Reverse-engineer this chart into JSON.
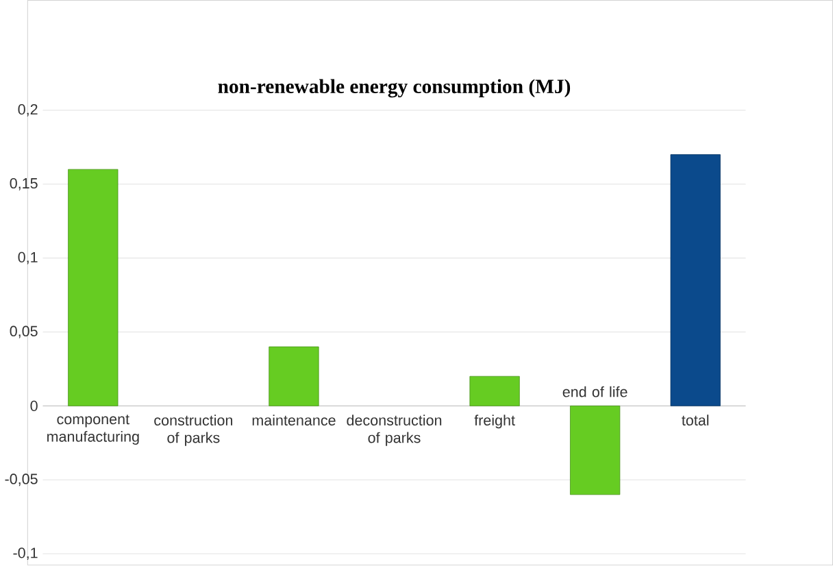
{
  "chart_data": {
    "type": "bar",
    "title": "non-renewable  energy consumption  (MJ)",
    "categories": [
      "component manufacturing",
      "construction of parks",
      "maintenance",
      "deconstruction of parks",
      "freight",
      "end of life",
      "total"
    ],
    "values": [
      0.16,
      0,
      0.04,
      0,
      0.02,
      -0.06,
      0.17
    ],
    "colors": [
      "#66cc22",
      "#66cc22",
      "#66cc22",
      "#66cc22",
      "#66cc22",
      "#66cc22",
      "#0b4a8c"
    ],
    "ylim": [
      -0.1,
      0.2
    ],
    "yticks": [
      {
        "value": -0.1,
        "label": "-0,1"
      },
      {
        "value": -0.05,
        "label": "-0,05"
      },
      {
        "value": 0,
        "label": "0"
      },
      {
        "value": 0.05,
        "label": "0,05"
      },
      {
        "value": 0.1,
        "label": "0,1"
      },
      {
        "value": 0.15,
        "label": "0,15"
      },
      {
        "value": 0.2,
        "label": "0,2"
      }
    ],
    "grid": "y"
  }
}
